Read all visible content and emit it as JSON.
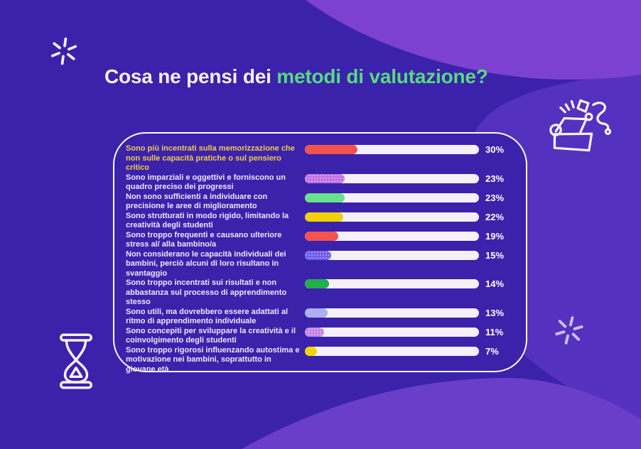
{
  "title": {
    "prefix": "Cosa ne pensi dei ",
    "highlight": "metodi di valutazione?"
  },
  "poll": {
    "rows": [
      {
        "label": "Sono più incentrati sulla memorizzazione che non sulle capacità pratiche o sul pensiero critico",
        "value_pct": 30,
        "display": "30%",
        "color": "#F4534E",
        "textured": false,
        "highlight": true
      },
      {
        "label": "Sono imparziali e oggettivi e forniscono un quadro preciso dei progressi",
        "value_pct": 23,
        "display": "23%",
        "color": "#C06EE2",
        "textured": true,
        "highlight": false
      },
      {
        "label": "Non sono sufficienti a individuare con precisione le aree di miglioramento",
        "value_pct": 23,
        "display": "23%",
        "color": "#69E08C",
        "textured": false,
        "highlight": false
      },
      {
        "label": "Sono strutturati in modo rigido, limitando la creatività degli studenti",
        "value_pct": 22,
        "display": "22%",
        "color": "#F2CF06",
        "textured": false,
        "highlight": false
      },
      {
        "label": "Sono troppo frequenti e causano ulteriore stress al/ alla bambino/a",
        "value_pct": 19,
        "display": "19%",
        "color": "#F4534E",
        "textured": false,
        "highlight": false
      },
      {
        "label": "Non considerano le capacità individuali dei bambini, perciò alcuni di loro risultano in svantaggio",
        "value_pct": 15,
        "display": "15%",
        "color": "#6A59E8",
        "textured": true,
        "highlight": false
      },
      {
        "label": "Sono troppo incentrati sui risultati e non abbastanza sul processo di apprendimento stesso",
        "value_pct": 14,
        "display": "14%",
        "color": "#23AF49",
        "textured": false,
        "highlight": false
      },
      {
        "label": "Sono utili, ma dovrebbero essere adattati al ritmo di apprendimento individuale",
        "value_pct": 13,
        "display": "13%",
        "color": "#ABB0F0",
        "textured": false,
        "highlight": false
      },
      {
        "label": "Sono concepiti per sviluppare la creatività e il coinvolgimento degli studenti",
        "value_pct": 11,
        "display": "11%",
        "color": "#C47FE6",
        "textured": true,
        "highlight": false
      },
      {
        "label": "Sono troppo rigorosi influenzando autostima e motivazione nei bambini, soprattutto in giovane età",
        "value_pct": 7,
        "display": "7%",
        "color": "#F2D403",
        "textured": false,
        "highlight": false
      }
    ]
  },
  "chart_data": {
    "type": "bar",
    "orientation": "horizontal",
    "title": "Cosa ne pensi dei metodi di valutazione?",
    "unit": "%",
    "xlim": [
      0,
      100
    ],
    "categories": [
      "Sono più incentrati sulla memorizzazione che non sulle capacità pratiche o sul pensiero critico",
      "Sono imparziali e oggettivi e forniscono un quadro preciso dei progressi",
      "Non sono sufficienti a individuare con precisione le aree di miglioramento",
      "Sono strutturati in modo rigido, limitando la creatività degli studenti",
      "Sono troppo frequenti e causano ulteriore stress al/ alla bambino/a",
      "Non considerano le capacità individuali dei bambini, perciò alcuni di loro risultano in svantaggio",
      "Sono troppo incentrati sui risultati e non abbastanza sul processo di apprendimento stesso",
      "Sono utili, ma dovrebbero essere adattati al ritmo di apprendimento individuale",
      "Sono concepiti per sviluppare la creatività e il coinvolgimento degli studenti",
      "Sono troppo rigorosi influenzando autostima e motivazione nei bambini, soprattutto in giovane età"
    ],
    "values": [
      30,
      23,
      23,
      22,
      19,
      15,
      14,
      13,
      11,
      7
    ],
    "bar_colors": [
      "#F4534E",
      "#C06EE2",
      "#69E08C",
      "#F2CF06",
      "#F4534E",
      "#6A59E8",
      "#23AF49",
      "#ABB0F0",
      "#C47FE6",
      "#F2D403"
    ],
    "value_labels": [
      "30%",
      "23%",
      "23%",
      "22%",
      "19%",
      "15%",
      "14%",
      "13%",
      "11%",
      "7%"
    ],
    "legend": false,
    "grid": false
  },
  "icons": {
    "top_left": "sparkle-icon",
    "top_right": "open-box-doodle-icon",
    "bottom_left": "hourglass-icon",
    "bottom_right": "sparkle-icon"
  },
  "colors": {
    "background": "#3B22AB",
    "bg_light_blob": "#7C41D1",
    "bg_medium_blob": "#5431BE",
    "bg_bottom_band": "#6A3EC9",
    "accent_green": "#56DB7E",
    "highlight_yellow": "#F2CB49",
    "bar_track": "#F4F1FA",
    "panel_border": "#FCFBFE",
    "text_light": "#EDE8F8"
  }
}
